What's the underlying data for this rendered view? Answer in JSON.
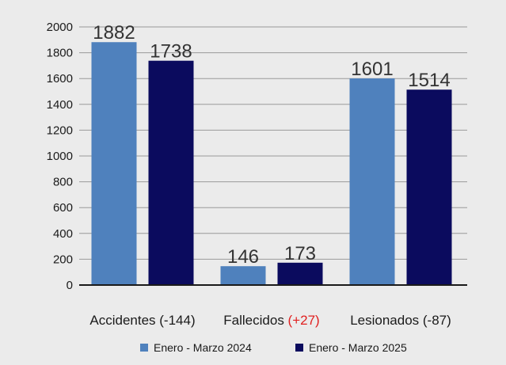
{
  "chart_data": {
    "type": "bar",
    "categories": [
      {
        "name": "Accidentes",
        "change": "(-144)",
        "change_color": "#1a1a1a"
      },
      {
        "name": "Fallecidos",
        "change": "(+27)",
        "change_color": "#e02020"
      },
      {
        "name": "Lesionados",
        "change": "(-87)",
        "change_color": "#1a1a1a"
      }
    ],
    "series": [
      {
        "name": "Enero - Marzo 2024",
        "color": "#4f81bd",
        "values": [
          1882,
          146,
          1601
        ]
      },
      {
        "name": "Enero - Marzo 2025",
        "color": "#0b0b5e",
        "values": [
          1738,
          173,
          1514
        ]
      }
    ],
    "title": "",
    "xlabel": "",
    "ylabel": "",
    "ylim": [
      0,
      2000
    ],
    "yticks": [
      0,
      200,
      400,
      600,
      800,
      1000,
      1200,
      1400,
      1600,
      1800,
      2000
    ],
    "grid": true,
    "legend_position": "bottom"
  }
}
